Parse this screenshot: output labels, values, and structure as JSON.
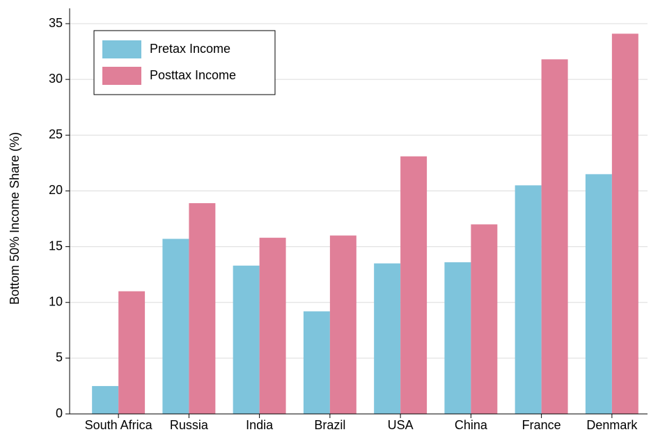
{
  "chart_data": {
    "type": "bar",
    "y_label": "Bottom 50% Income Share (%)",
    "categories": [
      "South Africa",
      "Russia",
      "India",
      "Brazil",
      "USA",
      "China",
      "France",
      "Denmark"
    ],
    "series": [
      {
        "name": "Pretax Income",
        "color": "#7ec4dc",
        "values": [
          2.5,
          15.7,
          13.3,
          9.2,
          13.5,
          13.6,
          20.5,
          21.5
        ]
      },
      {
        "name": "Posttax Income",
        "color": "#e07f98",
        "values": [
          11.0,
          18.9,
          15.8,
          16.0,
          23.1,
          17.0,
          31.8,
          34.1
        ]
      }
    ],
    "ylim": [
      0,
      35
    ],
    "yticks": [
      0,
      5,
      10,
      15,
      20,
      25,
      30,
      35
    ],
    "grid": true,
    "legend": "upper left"
  }
}
